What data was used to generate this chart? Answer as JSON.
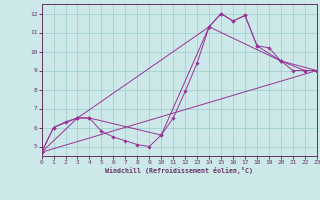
{
  "xlabel": "Windchill (Refroidissement éolien,°C)",
  "bg_color": "#cce8e8",
  "grid_color": "#99cccc",
  "line_color": "#993399",
  "spine_color": "#663366",
  "xlim": [
    0,
    23
  ],
  "ylim": [
    4.5,
    12.5
  ],
  "xticks": [
    0,
    1,
    2,
    3,
    4,
    5,
    6,
    7,
    8,
    9,
    10,
    11,
    12,
    13,
    14,
    15,
    16,
    17,
    18,
    19,
    20,
    21,
    22,
    23
  ],
  "yticks": [
    5,
    6,
    7,
    8,
    9,
    10,
    11,
    12
  ],
  "line1_x": [
    0,
    1,
    2,
    3,
    4,
    5,
    6,
    7,
    8,
    9,
    10,
    11,
    12,
    13,
    14,
    15,
    16,
    17,
    18,
    19,
    20,
    21,
    22,
    23
  ],
  "line1_y": [
    4.7,
    6.0,
    6.3,
    6.5,
    6.5,
    5.8,
    5.5,
    5.3,
    5.1,
    5.0,
    5.6,
    6.5,
    7.9,
    9.4,
    11.3,
    12.0,
    11.6,
    11.9,
    10.3,
    10.2,
    9.5,
    9.0,
    9.0,
    9.0
  ],
  "line2_x": [
    0,
    3,
    4,
    10,
    14,
    15,
    16,
    17,
    18,
    20,
    22,
    23
  ],
  "line2_y": [
    4.7,
    6.5,
    6.5,
    5.6,
    11.3,
    12.0,
    11.6,
    11.9,
    10.3,
    9.5,
    9.0,
    9.0
  ],
  "line3_x": [
    0,
    1,
    3,
    14,
    20,
    23
  ],
  "line3_y": [
    4.7,
    6.0,
    6.5,
    11.3,
    9.5,
    9.0
  ],
  "line4_x": [
    0,
    23
  ],
  "line4_y": [
    4.7,
    9.0
  ]
}
